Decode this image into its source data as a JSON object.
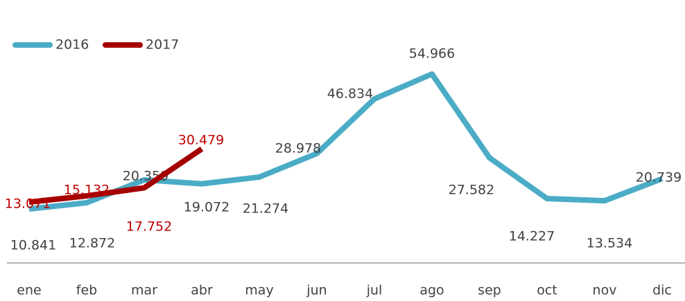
{
  "chart_data": {
    "type": "line",
    "categories": [
      "ene",
      "feb",
      "mar",
      "abr",
      "may",
      "jun",
      "jul",
      "ago",
      "sep",
      "oct",
      "nov",
      "dic"
    ],
    "series": [
      {
        "name": "2016",
        "color": "#4bacc6",
        "values": [
          10.841,
          12.872,
          20.359,
          19.072,
          21.274,
          28.978,
          46.834,
          54.966,
          27.582,
          14.227,
          13.534,
          20.739
        ]
      },
      {
        "name": "2017",
        "color": "#a50000",
        "values": [
          13.071,
          15.132,
          17.752,
          30.479,
          null,
          null,
          null,
          null,
          null,
          null,
          null,
          null
        ]
      }
    ],
    "label_colors": [
      "#404040",
      "#c00000"
    ]
  }
}
